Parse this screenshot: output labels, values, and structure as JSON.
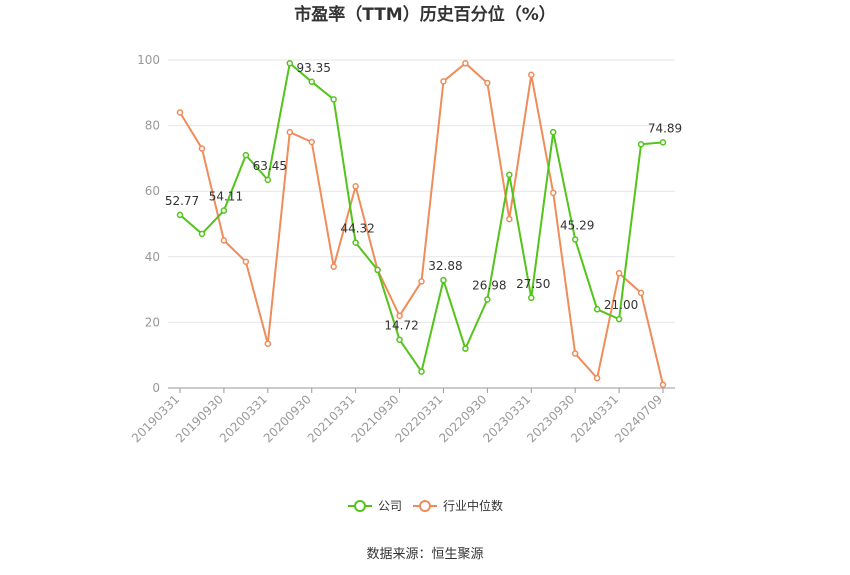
{
  "chart_data": {
    "type": "line",
    "title": "市盈率（TTM）历史百分位（%）",
    "categories": [
      "20190331",
      "20190630",
      "20190930",
      "20191231",
      "20200331",
      "20200630",
      "20200930",
      "20201231",
      "20210331",
      "20210630",
      "20210930",
      "20211231",
      "20220331",
      "20220630",
      "20220930",
      "20221231",
      "20230331",
      "20230630",
      "20230930",
      "20231231",
      "20240331",
      "20240630",
      "20240709"
    ],
    "x_tick_labels": [
      "20190331",
      "20190930",
      "20200331",
      "20200930",
      "20210331",
      "20210930",
      "20220331",
      "20220930",
      "20230331",
      "20230930",
      "20240331",
      "20240709"
    ],
    "ylim": [
      0,
      100
    ],
    "yticks": [
      0,
      20,
      40,
      60,
      80,
      100
    ],
    "grid": true,
    "legend_position": "bottom",
    "series": [
      {
        "name": "公司",
        "color": "#52c41a",
        "values": [
          52.77,
          47,
          54.11,
          71,
          63.45,
          99,
          93.35,
          88,
          44.32,
          36,
          14.72,
          5,
          32.88,
          12,
          26.98,
          65,
          27.5,
          78,
          45.29,
          24,
          21.0,
          74.3,
          74.89
        ],
        "labels": [
          "52.77",
          null,
          "54.11",
          null,
          "63.45",
          null,
          "93.35",
          null,
          "44.32",
          null,
          "14.72",
          null,
          "32.88",
          null,
          "26.98",
          null,
          "27.50",
          null,
          "45.29",
          null,
          "21.00",
          null,
          "74.89"
        ]
      },
      {
        "name": "行业中位数",
        "color": "#f08c5a",
        "values": [
          84,
          73,
          45,
          38.5,
          13.5,
          78,
          75,
          37,
          61.5,
          36,
          22,
          32.5,
          93.5,
          99,
          93,
          51.5,
          95.5,
          59.5,
          10.5,
          3,
          35,
          29,
          1
        ],
        "labels": []
      }
    ]
  },
  "source_text": "数据来源：恒生聚源"
}
